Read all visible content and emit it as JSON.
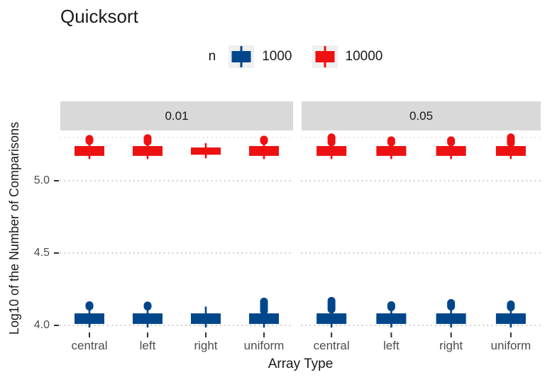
{
  "title": "Quicksort",
  "legend": {
    "title": "n",
    "entries": [
      {
        "label": "1000",
        "color": "#00468B"
      },
      {
        "label": "10000",
        "color": "#ED1111"
      }
    ]
  },
  "chart_data": {
    "type": "boxplot",
    "title": "Quicksort",
    "xlabel": "Array Type",
    "ylabel": "Log10 of the Number of Comparisons",
    "facets": [
      {
        "label": "0.01"
      },
      {
        "label": "0.05"
      }
    ],
    "categories": [
      "central",
      "left",
      "right",
      "uniform"
    ],
    "legend_title": "n",
    "series": [
      {
        "name": "1000",
        "color": "#00468B"
      },
      {
        "name": "10000",
        "color": "#ED1111"
      }
    ],
    "y_ticks": [
      {
        "value": 5.0,
        "label": "5.0"
      },
      {
        "value": 4.5,
        "label": "4.5"
      },
      {
        "value": 4.0,
        "label": "4.0"
      }
    ],
    "y_gridlines": [
      4.0,
      4.5,
      5.0,
      5.3
    ],
    "grid_style": "dotted",
    "ylim": [
      3.96,
      5.35
    ],
    "boxes": [
      {
        "facet": "0.01",
        "category": "central",
        "n": "10000",
        "q1": 5.172,
        "median": 5.205,
        "q3": 5.24,
        "whisker_low": 5.15,
        "whisker_high": 5.25,
        "outliers": [
          {
            "lo": 5.275,
            "hi": 5.29
          }
        ]
      },
      {
        "facet": "0.01",
        "category": "left",
        "n": "10000",
        "q1": 5.172,
        "median": 5.205,
        "q3": 5.24,
        "whisker_low": 5.15,
        "whisker_high": 5.25,
        "outliers": [
          {
            "lo": 5.27,
            "hi": 5.295
          }
        ]
      },
      {
        "facet": "0.01",
        "category": "right",
        "n": "10000",
        "q1": 5.18,
        "median": 5.205,
        "q3": 5.23,
        "whisker_low": 5.155,
        "whisker_high": 5.26,
        "outliers": []
      },
      {
        "facet": "0.01",
        "category": "uniform",
        "n": "10000",
        "q1": 5.172,
        "median": 5.205,
        "q3": 5.24,
        "whisker_low": 5.15,
        "whisker_high": 5.25,
        "outliers": [
          {
            "lo": 5.275,
            "hi": 5.285
          }
        ]
      },
      {
        "facet": "0.05",
        "category": "central",
        "n": "10000",
        "q1": 5.172,
        "median": 5.205,
        "q3": 5.24,
        "whisker_low": 5.15,
        "whisker_high": 5.25,
        "outliers": [
          {
            "lo": 5.265,
            "hi": 5.3
          }
        ]
      },
      {
        "facet": "0.05",
        "category": "left",
        "n": "10000",
        "q1": 5.172,
        "median": 5.205,
        "q3": 5.24,
        "whisker_low": 5.15,
        "whisker_high": 5.25,
        "outliers": [
          {
            "lo": 5.265,
            "hi": 5.28
          }
        ]
      },
      {
        "facet": "0.05",
        "category": "right",
        "n": "10000",
        "q1": 5.172,
        "median": 5.205,
        "q3": 5.24,
        "whisker_low": 5.15,
        "whisker_high": 5.25,
        "outliers": [
          {
            "lo": 5.265,
            "hi": 5.28
          }
        ]
      },
      {
        "facet": "0.05",
        "category": "uniform",
        "n": "10000",
        "q1": 5.172,
        "median": 5.205,
        "q3": 5.24,
        "whisker_low": 5.15,
        "whisker_high": 5.25,
        "outliers": [
          {
            "lo": 5.26,
            "hi": 5.3
          }
        ]
      },
      {
        "facet": "0.01",
        "category": "central",
        "n": "1000",
        "q1": 4.01,
        "median": 4.05,
        "q3": 4.083,
        "whisker_low": 3.985,
        "whisker_high": 4.105,
        "outliers": [
          {
            "lo": 4.13,
            "hi": 4.14
          }
        ]
      },
      {
        "facet": "0.01",
        "category": "left",
        "n": "1000",
        "q1": 4.01,
        "median": 4.05,
        "q3": 4.083,
        "whisker_low": 3.985,
        "whisker_high": 4.105,
        "outliers": [
          {
            "lo": 4.13,
            "hi": 4.138
          }
        ]
      },
      {
        "facet": "0.01",
        "category": "right",
        "n": "1000",
        "q1": 4.01,
        "median": 4.05,
        "q3": 4.083,
        "whisker_low": 3.985,
        "whisker_high": 4.13,
        "outliers": []
      },
      {
        "facet": "0.01",
        "category": "uniform",
        "n": "1000",
        "q1": 4.01,
        "median": 4.05,
        "q3": 4.083,
        "whisker_low": 3.985,
        "whisker_high": 4.1,
        "outliers": [
          {
            "lo": 4.1,
            "hi": 4.165
          }
        ]
      },
      {
        "facet": "0.05",
        "category": "central",
        "n": "1000",
        "q1": 4.01,
        "median": 4.05,
        "q3": 4.083,
        "whisker_low": 3.985,
        "whisker_high": 4.105,
        "outliers": [
          {
            "lo": 4.11,
            "hi": 4.17
          }
        ]
      },
      {
        "facet": "0.05",
        "category": "left",
        "n": "1000",
        "q1": 4.01,
        "median": 4.05,
        "q3": 4.083,
        "whisker_low": 3.985,
        "whisker_high": 4.105,
        "outliers": [
          {
            "lo": 4.125,
            "hi": 4.14
          }
        ]
      },
      {
        "facet": "0.05",
        "category": "right",
        "n": "1000",
        "q1": 4.01,
        "median": 4.05,
        "q3": 4.083,
        "whisker_low": 3.985,
        "whisker_high": 4.105,
        "outliers": [
          {
            "lo": 4.13,
            "hi": 4.155
          }
        ]
      },
      {
        "facet": "0.05",
        "category": "uniform",
        "n": "1000",
        "q1": 4.01,
        "median": 4.05,
        "q3": 4.083,
        "whisker_low": 3.985,
        "whisker_high": 4.105,
        "outliers": [
          {
            "lo": 4.125,
            "hi": 4.145
          }
        ]
      }
    ]
  },
  "colors": {
    "strip_background": "#D9D9D9",
    "gridline": "#C4C4C4",
    "minor_gridline": "#D6D6D6",
    "axis_text": "#4D4D4D",
    "tick_mark": "#333333"
  }
}
